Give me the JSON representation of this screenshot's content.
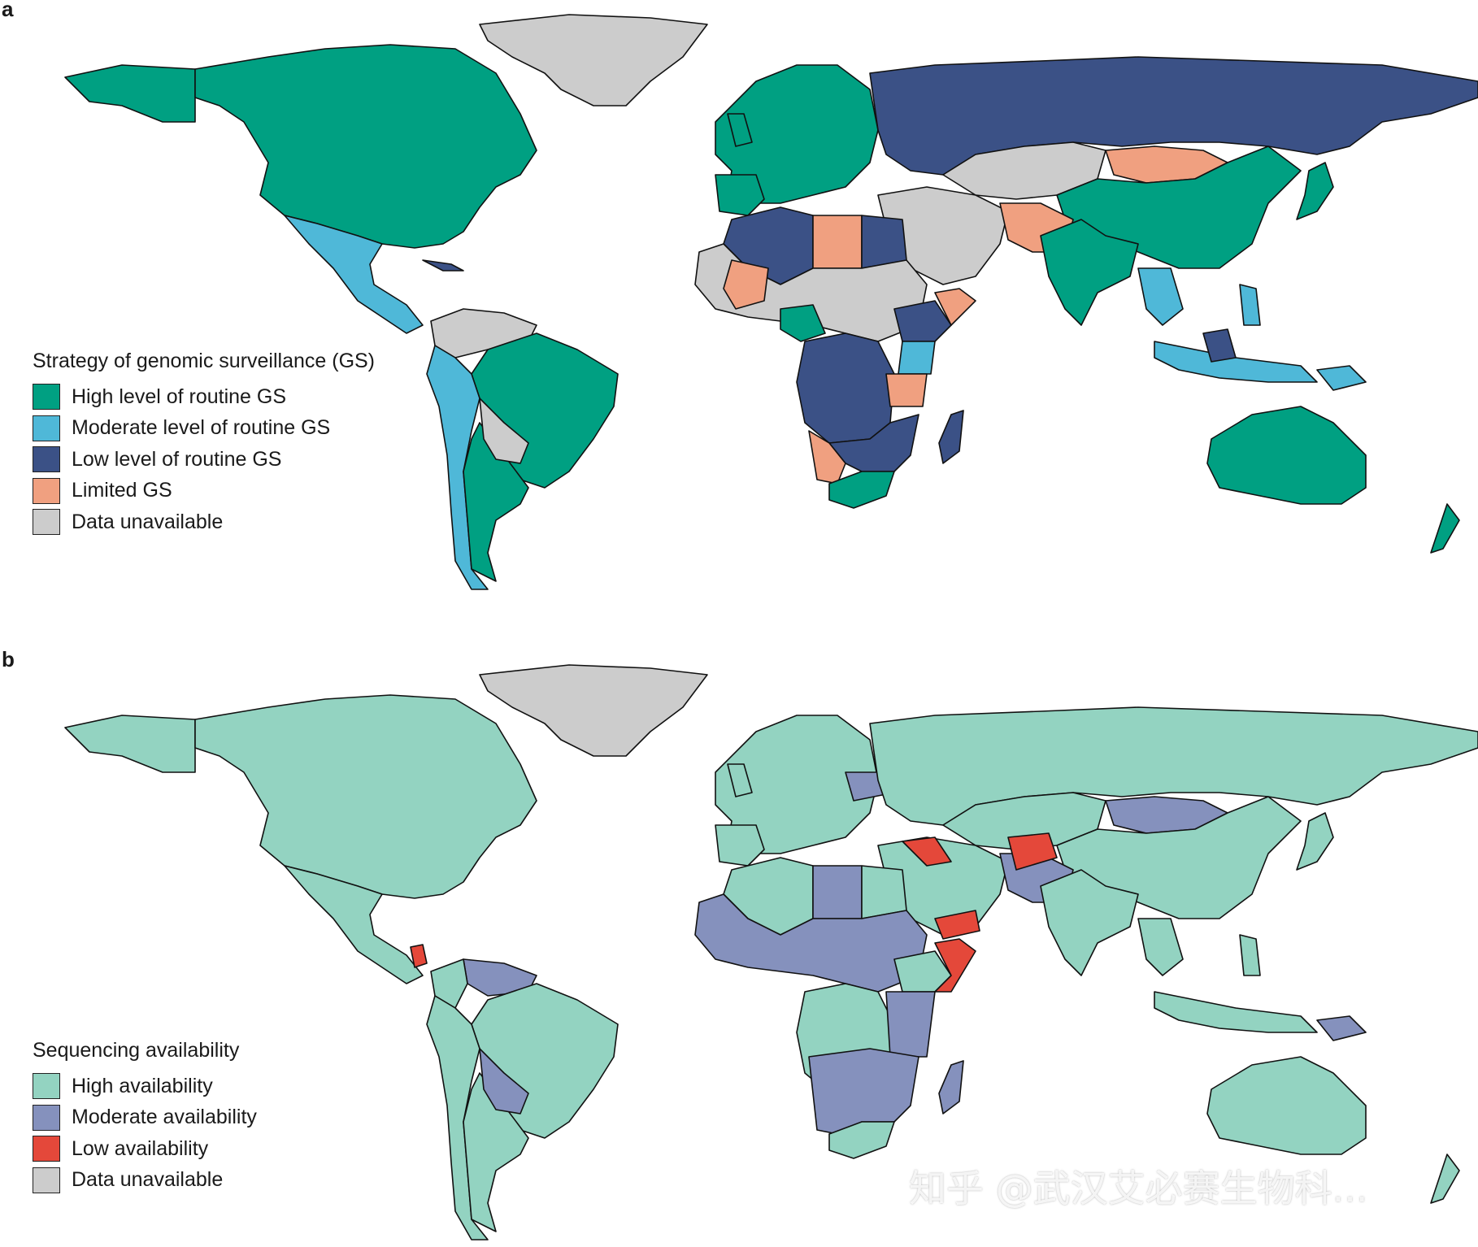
{
  "panel_a": {
    "label": "a",
    "legend_title": "Strategy of genomic surveillance (GS)",
    "legend": [
      {
        "label": "High level of routine GS",
        "color": "#00a082"
      },
      {
        "label": "Moderate level of routine GS",
        "color": "#4fb8d8"
      },
      {
        "label": "Low level of routine GS",
        "color": "#3b5186"
      },
      {
        "label": "Limited GS",
        "color": "#f0a080"
      },
      {
        "label": "Data unavailable",
        "color": "#cccccc"
      }
    ],
    "regions": {
      "greenland": "Data unavailable",
      "canada_usa": "High level of routine GS",
      "mexico_central_america": "Moderate level of routine GS",
      "brazil_argentina": "High level of routine GS",
      "andes_chile": "Moderate level of routine GS",
      "europe": "High level of routine GS",
      "russia": "Low level of routine GS",
      "china": "High level of routine GS",
      "india": "High level of routine GS",
      "mongolia_iran_afghanistan": "Limited GS",
      "middle_east_central_asia": "Data unavailable",
      "north_africa_algeria_egypt": "Low level of routine GS",
      "libya_mali": "Limited GS",
      "central_southern_africa": "Low level of routine GS",
      "east_africa_kenya_tanzania": "Moderate level of routine GS",
      "south_africa": "High level of routine GS",
      "indonesia_southeast_asia": "Moderate level of routine GS",
      "australia_nz_japan": "High level of routine GS"
    }
  },
  "panel_b": {
    "label": "b",
    "legend_title": "Sequencing availability",
    "legend": [
      {
        "label": "High availability",
        "color": "#93d3c1"
      },
      {
        "label": "Moderate availability",
        "color": "#8591bd"
      },
      {
        "label": "Low availability",
        "color": "#e4483a"
      },
      {
        "label": "Data unavailable",
        "color": "#cccccc"
      }
    ],
    "regions": {
      "greenland": "Data unavailable",
      "north_america": "High availability",
      "south_america": "High availability",
      "venezuela_bolivia": "Moderate availability",
      "europe_russia_china": "High availability",
      "mongolia_ukraine": "Moderate availability",
      "west_central_africa": "Moderate availability",
      "southern_africa_belt": "Moderate availability",
      "afghanistan_syria_yemen_somalia": "Low availability",
      "india_australia": "High availability"
    }
  },
  "watermark": "知乎 @武汉艾必赛生物科..."
}
